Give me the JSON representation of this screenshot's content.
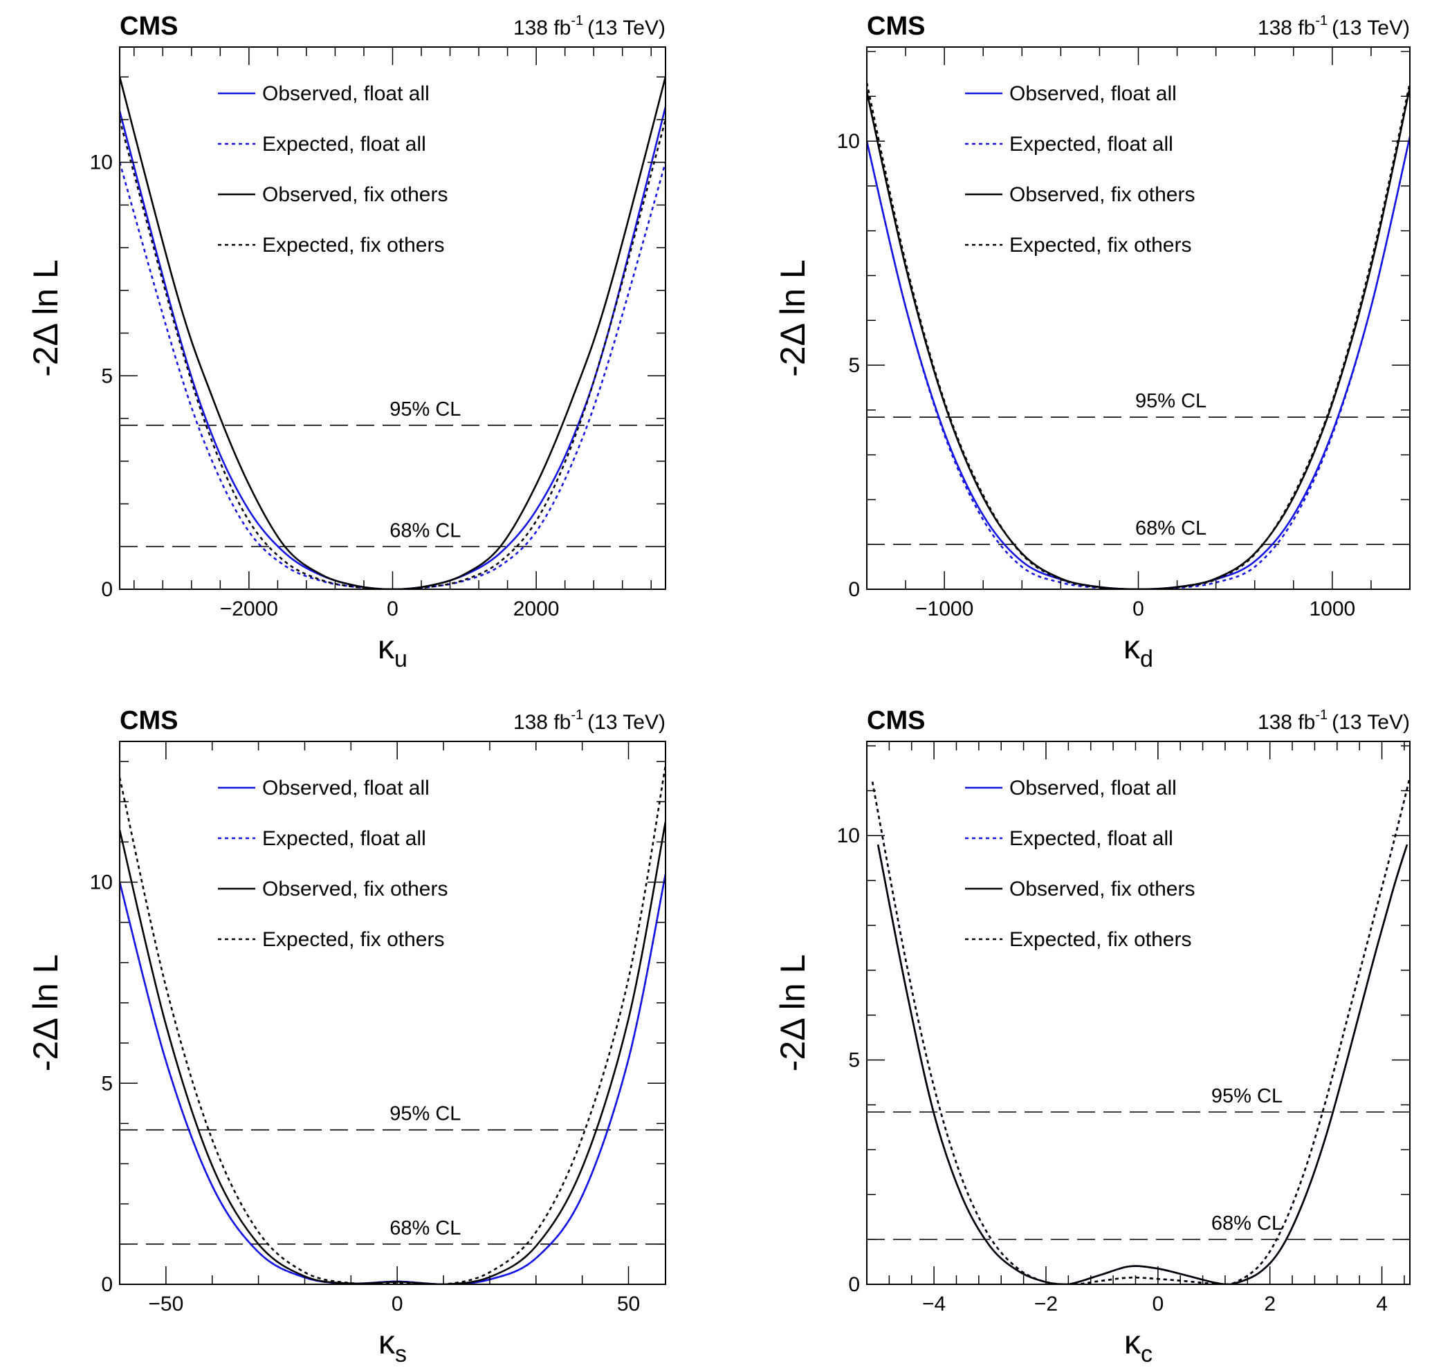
{
  "chart_data": [
    {
      "type": "line",
      "experiment": "CMS",
      "lumi_text": "138 fb",
      "lumi_exp": "-1",
      "energy_text": "(13 TeV)",
      "xlabel_symbol": "κ",
      "xlabel_sub": "u",
      "ylabel": "-2Δ ln L",
      "xlim": [
        -3800,
        3800
      ],
      "ylim": [
        0,
        12.7
      ],
      "xticks": [
        -2000,
        0,
        2000
      ],
      "xtick_labels": [
        "−2000",
        "0",
        "2000"
      ],
      "yticks": [
        0,
        5,
        10
      ],
      "ytick_labels": [
        "0",
        "5",
        "10"
      ],
      "cl_lines": [
        {
          "label": "95% CL",
          "y": 3.84
        },
        {
          "label": "68% CL",
          "y": 1.0
        }
      ],
      "legend": [
        {
          "label": "Observed, float all",
          "color": "#1414e6",
          "dash": "solid"
        },
        {
          "label": "Expected, float all",
          "color": "#1414e6",
          "dash": "dotted"
        },
        {
          "label": "Observed, fix others",
          "color": "#000000",
          "dash": "solid"
        },
        {
          "label": "Expected, fix others",
          "color": "#000000",
          "dash": "dotted"
        }
      ],
      "series": [
        {
          "name": "Observed, float all",
          "color": "#1414e6",
          "dash": "solid",
          "x": [
            -3800,
            -3000,
            -2500,
            -2000,
            -1500,
            -1000,
            -500,
            0,
            500,
            1000,
            1500,
            2000,
            2500,
            3000,
            3800
          ],
          "y": [
            11.2,
            6.1,
            3.55,
            1.85,
            0.85,
            0.33,
            0.08,
            0.0,
            0.08,
            0.33,
            0.85,
            1.85,
            3.5,
            6.0,
            11.3
          ]
        },
        {
          "name": "Expected, float all",
          "color": "#1414e6",
          "dash": "dotted",
          "x": [
            -3800,
            -3000,
            -2500,
            -2000,
            -1500,
            -1000,
            -500,
            0,
            500,
            1000,
            1500,
            2000,
            2500,
            3000,
            3800
          ],
          "y": [
            10.0,
            5.3,
            2.95,
            1.35,
            0.55,
            0.2,
            0.05,
            0.0,
            0.05,
            0.2,
            0.55,
            1.35,
            2.95,
            5.3,
            10.0
          ]
        },
        {
          "name": "Observed, fix others",
          "color": "#000000",
          "dash": "solid",
          "x": [
            -3800,
            -3000,
            -2500,
            -2000,
            -1500,
            -1000,
            -500,
            0,
            500,
            1000,
            1500,
            2000,
            2500,
            3000,
            3800
          ],
          "y": [
            12.0,
            6.9,
            4.45,
            2.45,
            1.0,
            0.35,
            0.08,
            0.0,
            0.08,
            0.35,
            1.0,
            2.45,
            4.45,
            6.9,
            12.0
          ]
        },
        {
          "name": "Expected, fix others",
          "color": "#000000",
          "dash": "dotted",
          "x": [
            -3800,
            -3000,
            -2500,
            -2000,
            -1500,
            -1000,
            -500,
            0,
            500,
            1000,
            1500,
            2000,
            2500,
            3000,
            3800
          ],
          "y": [
            11.0,
            6.0,
            3.4,
            1.6,
            0.65,
            0.22,
            0.05,
            0.0,
            0.05,
            0.22,
            0.65,
            1.6,
            3.4,
            6.0,
            11.0
          ]
        }
      ]
    },
    {
      "type": "line",
      "experiment": "CMS",
      "lumi_text": "138 fb",
      "lumi_exp": "-1",
      "energy_text": "(13 TeV)",
      "xlabel_symbol": "κ",
      "xlabel_sub": "d",
      "ylabel": "-2Δ ln L",
      "xlim": [
        -1400,
        1400
      ],
      "ylim": [
        0,
        12.1
      ],
      "xticks": [
        -1000,
        0,
        1000
      ],
      "xtick_labels": [
        "−1000",
        "0",
        "1000"
      ],
      "yticks": [
        0,
        5,
        10
      ],
      "ytick_labels": [
        "0",
        "5",
        "10"
      ],
      "cl_lines": [
        {
          "label": "95% CL",
          "y": 3.84
        },
        {
          "label": "68% CL",
          "y": 1.0
        }
      ],
      "legend": [
        {
          "label": "Observed, float all",
          "color": "#1414e6",
          "dash": "solid"
        },
        {
          "label": "Expected, float all",
          "color": "#1414e6",
          "dash": "dotted"
        },
        {
          "label": "Observed, fix others",
          "color": "#000000",
          "dash": "solid"
        },
        {
          "label": "Expected, fix others",
          "color": "#000000",
          "dash": "dotted"
        }
      ],
      "series": [
        {
          "name": "Observed, float all",
          "color": "#1414e6",
          "dash": "solid",
          "x": [
            -1400,
            -1200,
            -1000,
            -800,
            -600,
            -400,
            -200,
            0,
            200,
            400,
            600,
            800,
            1000,
            1200,
            1400
          ],
          "y": [
            10.0,
            6.3,
            3.5,
            1.65,
            0.62,
            0.22,
            0.05,
            0.0,
            0.05,
            0.22,
            0.62,
            1.65,
            3.5,
            6.3,
            10.1
          ]
        },
        {
          "name": "Expected, float all",
          "color": "#1414e6",
          "dash": "dotted",
          "x": [
            -1400,
            -1200,
            -1000,
            -800,
            -600,
            -400,
            -200,
            0,
            200,
            400,
            600,
            800,
            1000,
            1200,
            1400
          ],
          "y": [
            10.0,
            6.3,
            3.45,
            1.55,
            0.5,
            0.15,
            0.03,
            0.0,
            0.03,
            0.15,
            0.5,
            1.55,
            3.45,
            6.3,
            10.1
          ]
        },
        {
          "name": "Observed, fix others",
          "color": "#000000",
          "dash": "solid",
          "x": [
            -1400,
            -1200,
            -1000,
            -800,
            -600,
            -400,
            -200,
            0,
            200,
            400,
            600,
            800,
            1000,
            1200,
            1400
          ],
          "y": [
            11.1,
            7.2,
            4.15,
            2.05,
            0.8,
            0.24,
            0.05,
            0.0,
            0.05,
            0.24,
            0.8,
            2.05,
            4.15,
            7.2,
            11.2
          ]
        },
        {
          "name": "Expected, fix others",
          "color": "#000000",
          "dash": "dotted",
          "x": [
            -1400,
            -1200,
            -1000,
            -800,
            -600,
            -400,
            -200,
            0,
            200,
            400,
            600,
            800,
            1000,
            1200,
            1400
          ],
          "y": [
            11.3,
            7.3,
            4.2,
            2.1,
            0.78,
            0.22,
            0.04,
            0.0,
            0.04,
            0.22,
            0.78,
            2.1,
            4.2,
            7.3,
            11.3
          ]
        }
      ]
    },
    {
      "type": "line",
      "experiment": "CMS",
      "lumi_text": "138 fb",
      "lumi_exp": "-1",
      "energy_text": "(13 TeV)",
      "xlabel_symbol": "κ",
      "xlabel_sub": "s",
      "ylabel": "-2Δ ln L",
      "xlim": [
        -60,
        58
      ],
      "ylim": [
        0,
        13.5
      ],
      "xticks": [
        -50,
        0,
        50
      ],
      "xtick_labels": [
        "−50",
        "0",
        "50"
      ],
      "yticks": [
        0,
        5,
        10
      ],
      "ytick_labels": [
        "0",
        "5",
        "10"
      ],
      "cl_lines": [
        {
          "label": "95% CL",
          "y": 3.84
        },
        {
          "label": "68% CL",
          "y": 1.0
        }
      ],
      "legend": [
        {
          "label": "Observed, float all",
          "color": "#1414e6",
          "dash": "solid"
        },
        {
          "label": "Expected, float all",
          "color": "#1414e6",
          "dash": "dotted"
        },
        {
          "label": "Observed, fix others",
          "color": "#000000",
          "dash": "solid"
        },
        {
          "label": "Expected, fix others",
          "color": "#000000",
          "dash": "dotted"
        }
      ],
      "series": [
        {
          "name": "Observed, float all",
          "color": "#1414e6",
          "dash": "solid",
          "x": [
            -60,
            -50,
            -40,
            -30,
            -20,
            -10,
            0,
            10,
            20,
            30,
            40,
            50,
            58
          ],
          "y": [
            10.0,
            5.55,
            2.45,
            0.8,
            0.17,
            0.02,
            0.07,
            0.0,
            0.12,
            0.65,
            2.2,
            5.6,
            10.2
          ]
        },
        {
          "name": "Expected, float all",
          "color": "#1414e6",
          "dash": "dotted",
          "x": [
            -60,
            -50,
            -40,
            -30,
            -20,
            -10,
            0,
            10,
            20,
            30,
            40,
            50,
            58
          ],
          "y": [
            10.0,
            5.55,
            2.45,
            0.8,
            0.17,
            0.02,
            0.07,
            0.0,
            0.12,
            0.65,
            2.2,
            5.6,
            10.2
          ]
        },
        {
          "name": "Observed, fix others",
          "color": "#000000",
          "dash": "solid",
          "x": [
            -60,
            -50,
            -40,
            -30,
            -20,
            -10,
            0,
            10,
            20,
            30,
            40,
            50,
            58
          ],
          "y": [
            11.3,
            6.45,
            2.95,
            1.0,
            0.2,
            0.02,
            0.06,
            0.0,
            0.18,
            0.95,
            2.9,
            6.6,
            11.5
          ]
        },
        {
          "name": "Expected, fix others",
          "color": "#000000",
          "dash": "dotted",
          "x": [
            -60,
            -50,
            -40,
            -30,
            -20,
            -10,
            0,
            10,
            20,
            30,
            40,
            50,
            58
          ],
          "y": [
            12.6,
            7.4,
            3.6,
            1.3,
            0.3,
            0.03,
            0.04,
            0.0,
            0.3,
            1.3,
            3.65,
            7.6,
            12.9
          ]
        }
      ]
    },
    {
      "type": "line",
      "experiment": "CMS",
      "lumi_text": "138 fb",
      "lumi_exp": "-1",
      "energy_text": "(13 TeV)",
      "xlabel_symbol": "κ",
      "xlabel_sub": "c",
      "ylabel": "-2Δ ln L",
      "xlim": [
        -5.2,
        4.5
      ],
      "ylim": [
        0,
        12.1
      ],
      "xticks": [
        -4,
        -2,
        0,
        2,
        4
      ],
      "xtick_labels": [
        "−4",
        "−2",
        "0",
        "2",
        "4"
      ],
      "yticks": [
        0,
        5,
        10
      ],
      "ytick_labels": [
        "0",
        "5",
        "10"
      ],
      "cl_lines": [
        {
          "label": "95% CL",
          "y": 3.84
        },
        {
          "label": "68% CL",
          "y": 1.0
        }
      ],
      "legend": [
        {
          "label": "Observed, float all",
          "color": "#1414e6",
          "dash": "solid"
        },
        {
          "label": "Expected, float all",
          "color": "#1414e6",
          "dash": "dotted"
        },
        {
          "label": "Observed, fix others",
          "color": "#000000",
          "dash": "solid"
        },
        {
          "label": "Expected, fix others",
          "color": "#000000",
          "dash": "dotted"
        }
      ],
      "series": [
        {
          "name": "Observed, float all",
          "color": "#1414e6",
          "dash": "solid",
          "x": [
            -5.0,
            -4.5,
            -4.0,
            -3.5,
            -3.0,
            -2.5,
            -2.0,
            -1.6,
            -1.0,
            -0.5,
            0.0,
            0.5,
            1.0,
            1.3,
            1.8,
            2.2,
            2.6,
            3.0,
            3.4,
            3.8,
            4.2,
            4.45
          ],
          "y": [
            9.8,
            6.6,
            3.8,
            1.95,
            0.85,
            0.3,
            0.05,
            0.0,
            0.22,
            0.4,
            0.35,
            0.2,
            0.04,
            0.0,
            0.25,
            0.8,
            1.85,
            3.3,
            5.1,
            7.0,
            8.8,
            9.8
          ]
        },
        {
          "name": "Expected, float all",
          "color": "#1414e6",
          "dash": "dotted",
          "x": [
            -5.1,
            -4.5,
            -4.0,
            -3.5,
            -3.0,
            -2.5,
            -2.0,
            -1.5,
            -1.0,
            -0.5,
            0.0,
            0.5,
            1.0,
            1.3,
            1.8,
            2.2,
            2.6,
            3.0,
            3.4,
            3.8,
            4.2,
            4.5
          ],
          "y": [
            11.2,
            7.2,
            4.4,
            2.35,
            1.05,
            0.35,
            0.05,
            0.0,
            0.08,
            0.15,
            0.12,
            0.07,
            0.01,
            0.0,
            0.4,
            1.2,
            2.45,
            4.1,
            6.0,
            7.9,
            9.8,
            11.3
          ]
        },
        {
          "name": "Observed, fix others",
          "color": "#000000",
          "dash": "solid",
          "x": [
            -5.0,
            -4.5,
            -4.0,
            -3.5,
            -3.0,
            -2.5,
            -2.0,
            -1.6,
            -1.0,
            -0.5,
            0.0,
            0.5,
            1.0,
            1.3,
            1.8,
            2.2,
            2.6,
            3.0,
            3.4,
            3.8,
            4.2,
            4.45
          ],
          "y": [
            9.8,
            6.6,
            3.8,
            1.95,
            0.85,
            0.3,
            0.05,
            0.0,
            0.22,
            0.4,
            0.35,
            0.2,
            0.04,
            0.0,
            0.25,
            0.8,
            1.85,
            3.3,
            5.1,
            7.0,
            8.8,
            9.8
          ]
        },
        {
          "name": "Expected, fix others",
          "color": "#000000",
          "dash": "dotted",
          "x": [
            -5.1,
            -4.5,
            -4.0,
            -3.5,
            -3.0,
            -2.5,
            -2.0,
            -1.5,
            -1.0,
            -0.5,
            0.0,
            0.5,
            1.0,
            1.3,
            1.8,
            2.2,
            2.6,
            3.0,
            3.4,
            3.8,
            4.2,
            4.5
          ],
          "y": [
            11.2,
            7.2,
            4.4,
            2.35,
            1.05,
            0.35,
            0.05,
            0.0,
            0.08,
            0.15,
            0.12,
            0.07,
            0.01,
            0.0,
            0.4,
            1.2,
            2.45,
            4.1,
            6.0,
            7.9,
            9.8,
            11.3
          ]
        }
      ]
    }
  ]
}
